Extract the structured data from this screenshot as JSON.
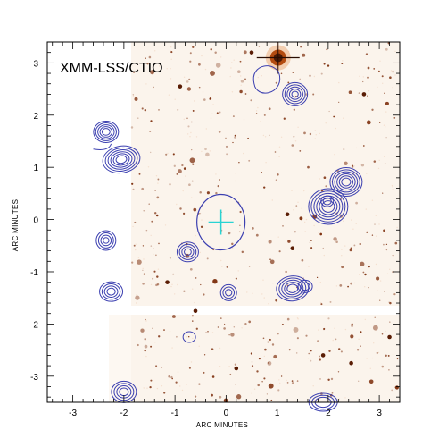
{
  "figure": {
    "title": "XMM-LSS/CTIO",
    "x_axis_label": "ARC MINUTES",
    "y_axis_label": "ARC MINUTES",
    "x_range": [
      -3.5,
      3.4
    ],
    "y_range": [
      -3.5,
      3.4
    ],
    "x_ticks": [
      -3,
      -2,
      -1,
      0,
      1,
      2,
      3
    ],
    "y_ticks": [
      -3,
      -2,
      -1,
      0,
      1,
      2,
      3
    ],
    "colors": {
      "contour": "#3b3fb0",
      "crosshair": "#29d3d3",
      "optical_background": "#fbf4ec",
      "optical_sources": "#7a2a08",
      "bright_star": "#b34b10",
      "frame": "#000000"
    },
    "features": {
      "optical_image": "CTIO optical image (orange, inverted grayscale)",
      "contours": "X-ray contours (blue)",
      "central_marker": "cyan cross at center",
      "central_circle": "blue circle around center"
    }
  }
}
